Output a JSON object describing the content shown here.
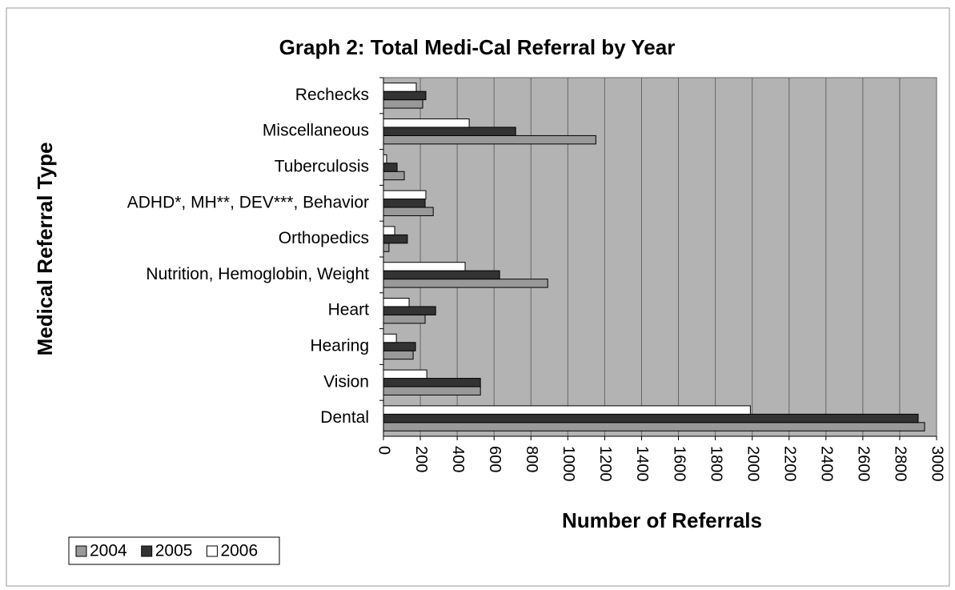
{
  "chart_data": {
    "type": "bar",
    "orientation": "horizontal",
    "title": "Graph 2:  Total Medi-Cal Referral by Year",
    "x_label": "Number of Referrals",
    "y_label": "Medical Referral Type",
    "categories": [
      "Rechecks",
      "Miscellaneous",
      "Tuberculosis",
      "ADHD*, MH**, DEV***, Behavior",
      "Orthopedics",
      "Nutrition, Hemoglobin, Weight",
      "Heart",
      "Hearing",
      "Vision",
      "Dental"
    ],
    "series": [
      {
        "name": "2004",
        "color": "#999999",
        "values": [
          213,
          1152,
          113,
          270,
          30,
          891,
          226,
          161,
          526,
          2935
        ]
      },
      {
        "name": "2005",
        "color": "#333333",
        "values": [
          230,
          717,
          74,
          226,
          130,
          630,
          283,
          174,
          526,
          2900
        ]
      },
      {
        "name": "2006",
        "color": "#ffffff",
        "values": [
          178,
          465,
          17,
          230,
          61,
          443,
          139,
          70,
          235,
          1990
        ]
      }
    ],
    "xlim": [
      0,
      3000
    ],
    "xticks": [
      0,
      200,
      400,
      600,
      800,
      1000,
      1200,
      1400,
      1600,
      1800,
      2000,
      2200,
      2400,
      2600,
      2800,
      3000
    ],
    "grid": true,
    "legend": "bottom-left",
    "plot_background": "#b3b3b3"
  }
}
